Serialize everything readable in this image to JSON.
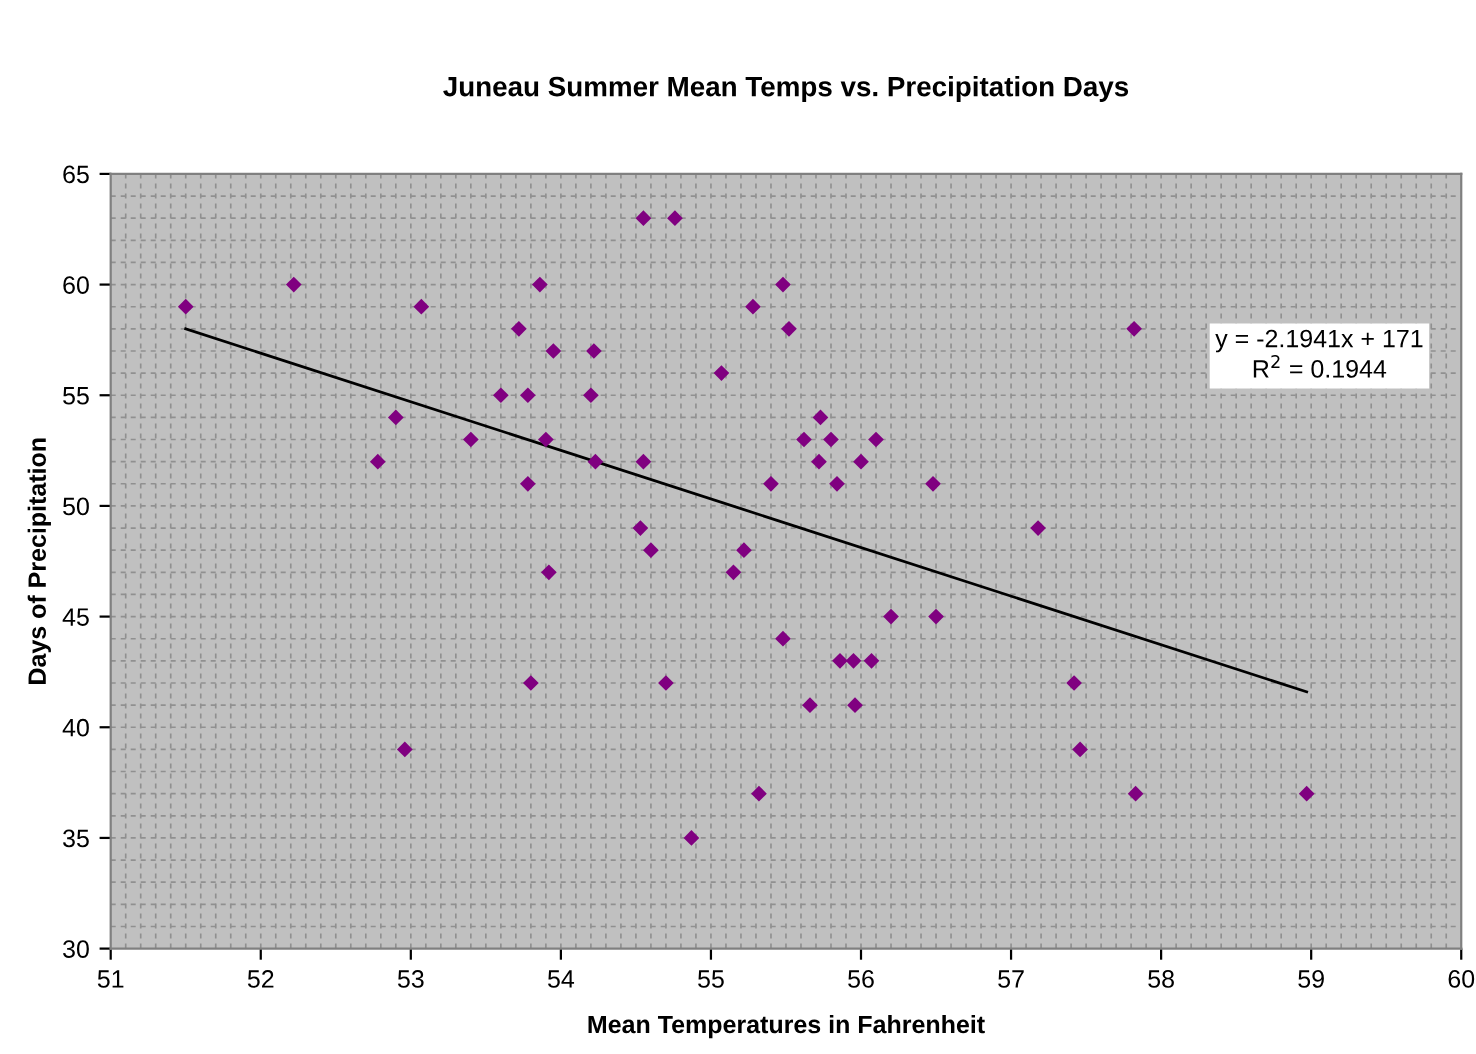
{
  "chart_data": {
    "type": "scatter",
    "title": "Juneau Summer Mean Temps vs. Precipitation Days",
    "xlabel": "Mean Temperatures in Fahrenheit",
    "ylabel": "Days of Precipitation",
    "xlim": [
      51,
      60
    ],
    "xticks": [
      51,
      52,
      53,
      54,
      55,
      56,
      57,
      58,
      59,
      60
    ],
    "ylim": [
      30,
      65
    ],
    "yticks": [
      30,
      35,
      40,
      45,
      50,
      55,
      60,
      65
    ],
    "grid": true,
    "annotations": [
      "y = -2.1941x + 171",
      "R$^{2}$ = 0.1944"
    ],
    "series": [
      {
        "marker": "diamond",
        "color": "#800080",
        "x": [
          51.5,
          52.22,
          53.07,
          52.78,
          52.9,
          53.4,
          52.96,
          53.6,
          53.72,
          53.78,
          53.78,
          53.8,
          53.86,
          53.9,
          53.92,
          53.95,
          54.2,
          54.22,
          54.23,
          54.55,
          54.76,
          54.53,
          54.55,
          54.6,
          54.7,
          54.87,
          55.07,
          55.15,
          55.22,
          55.28,
          55.32,
          55.4,
          55.48,
          55.48,
          55.52,
          55.62,
          55.66,
          55.72,
          55.73,
          55.8,
          55.84,
          55.86,
          55.95,
          55.96,
          56.0,
          56.07,
          56.1,
          56.2,
          56.48,
          56.5,
          57.18,
          57.42,
          57.46,
          57.82,
          57.83,
          58.97
        ],
        "values": [
          59,
          60,
          59,
          52,
          54,
          53,
          39,
          55,
          58,
          55,
          51,
          42,
          60,
          53,
          47,
          57,
          55,
          57,
          52,
          63,
          63,
          49,
          52,
          48,
          42,
          35,
          56,
          47,
          48,
          59,
          37,
          51,
          44,
          60,
          58,
          53,
          41,
          52,
          54,
          53,
          51,
          43,
          43,
          41,
          52,
          43,
          53,
          45,
          51,
          45,
          49,
          42,
          39,
          58,
          37,
          37
        ]
      },
      {
        "type": "line",
        "color": "#000000",
        "x": [
          51.5,
          58.97
        ],
        "values": [
          58.0,
          41.6
        ]
      }
    ]
  }
}
